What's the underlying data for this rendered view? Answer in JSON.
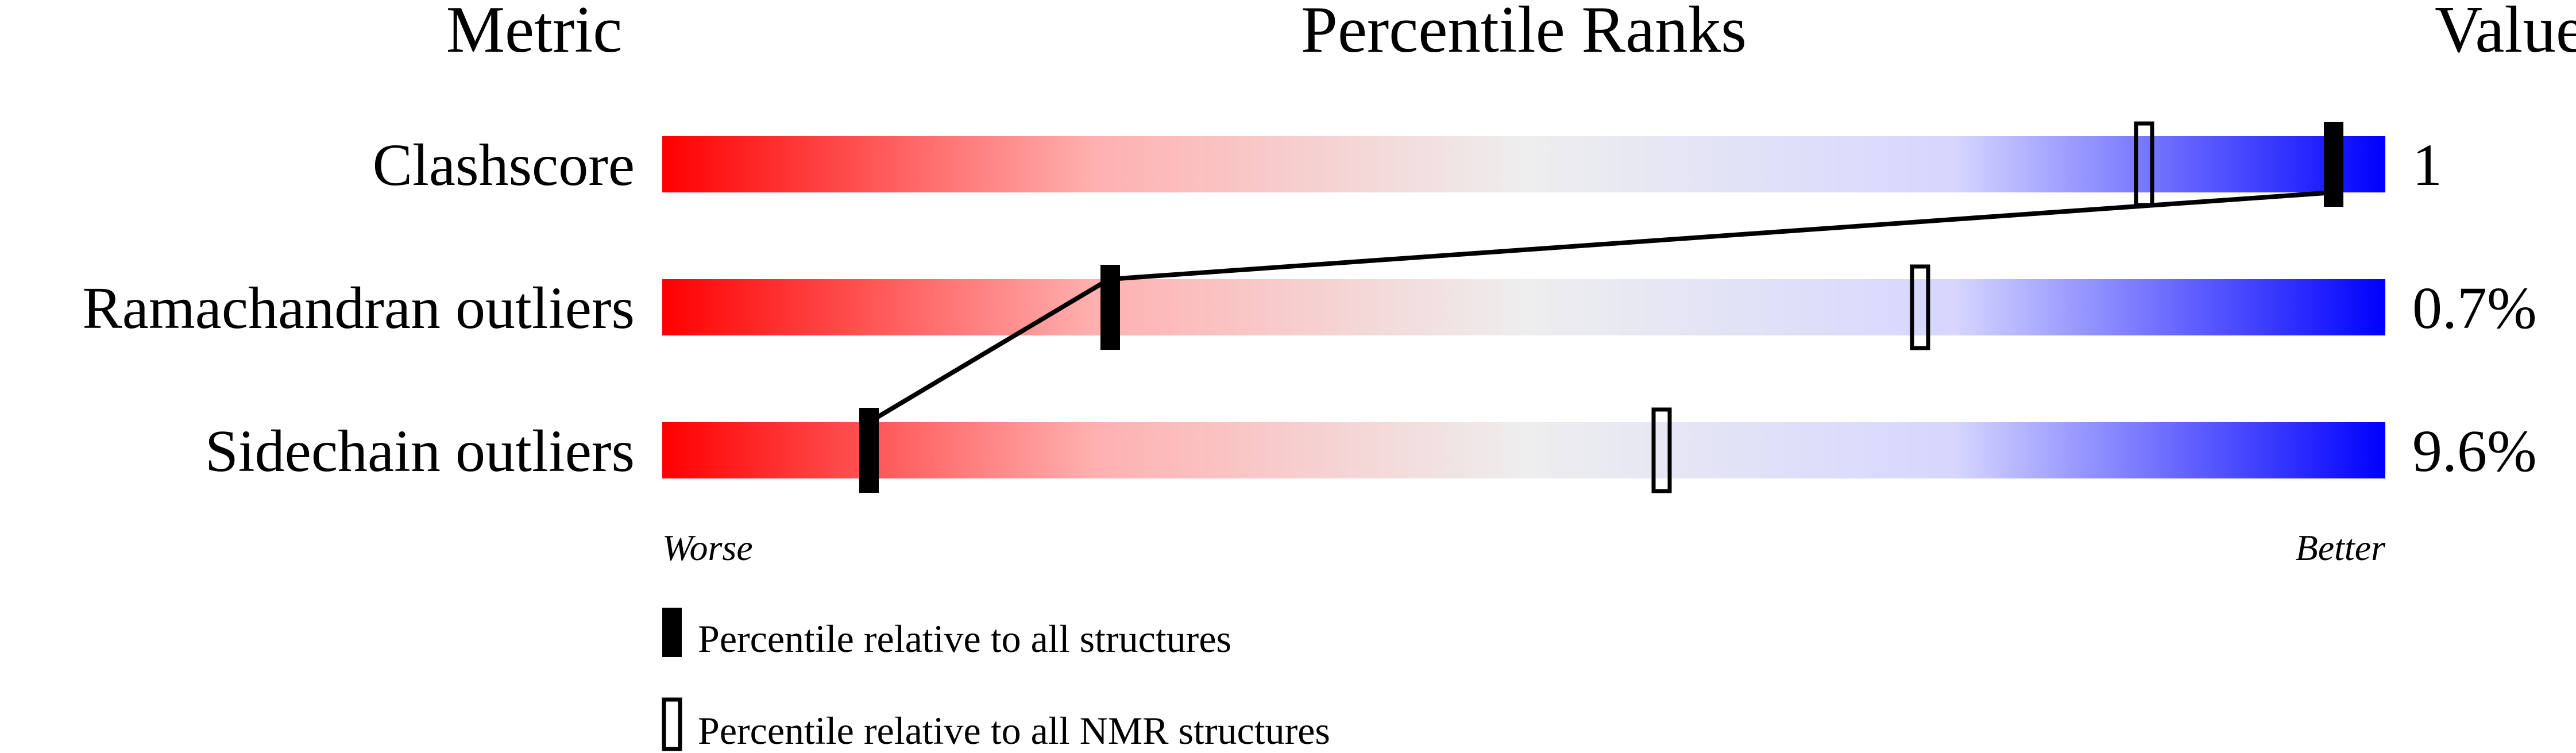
{
  "chart_data": {
    "type": "percentile-slider",
    "headers": {
      "metric": "Metric",
      "ranks": "Percentile Ranks",
      "value": "Value"
    },
    "axis": {
      "worse_label": "Worse",
      "better_label": "Better",
      "range": [
        0,
        100
      ]
    },
    "metrics": [
      {
        "name": "Clashscore",
        "value": "1",
        "percentile_all": 97,
        "percentile_nmr": 86
      },
      {
        "name": "Ramachandran outliers",
        "value": "0.7%",
        "percentile_all": 26,
        "percentile_nmr": 73
      },
      {
        "name": "Sidechain outliers",
        "value": "9.6%",
        "percentile_all": 12,
        "percentile_nmr": 58
      }
    ],
    "legend": {
      "all": "Percentile relative to all structures",
      "nmr": "Percentile relative to all NMR structures"
    },
    "colors": {
      "worse": "#ff0000",
      "middle": "#eeeeee",
      "better": "#0000ff",
      "marker": "#000000"
    }
  }
}
